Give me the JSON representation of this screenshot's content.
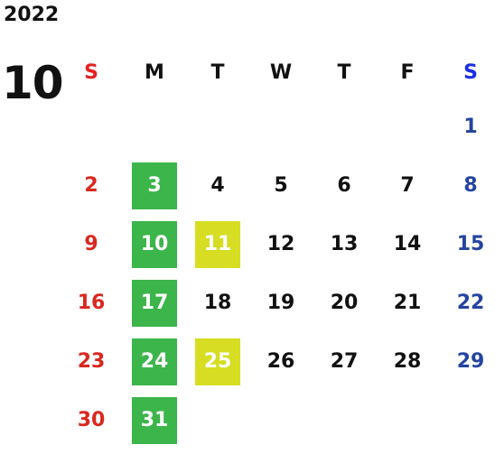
{
  "calendar": {
    "year": "2022",
    "month": "10",
    "weekdays": [
      "S",
      "M",
      "T",
      "W",
      "T",
      "F",
      "S"
    ],
    "weeks": [
      [
        "",
        "",
        "",
        "",
        "",
        "",
        "1"
      ],
      [
        "2",
        "3",
        "4",
        "5",
        "6",
        "7",
        "8"
      ],
      [
        "9",
        "10",
        "11",
        "12",
        "13",
        "14",
        "15"
      ],
      [
        "16",
        "17",
        "18",
        "19",
        "20",
        "21",
        "22"
      ],
      [
        "23",
        "24",
        "25",
        "26",
        "27",
        "28",
        "29"
      ],
      [
        "30",
        "31",
        "",
        "",
        "",
        "",
        ""
      ]
    ],
    "highlights": {
      "green": [
        "3",
        "10",
        "17",
        "24",
        "31"
      ],
      "yellow": [
        "11",
        "25"
      ]
    }
  },
  "colors": {
    "sunday": "#d9281f",
    "saturday": "#2444a0",
    "sunday_header": "#e62222",
    "saturday_header": "#1a2ee8",
    "green_highlight": "#3cb54a",
    "yellow_highlight": "#d6dd22"
  }
}
